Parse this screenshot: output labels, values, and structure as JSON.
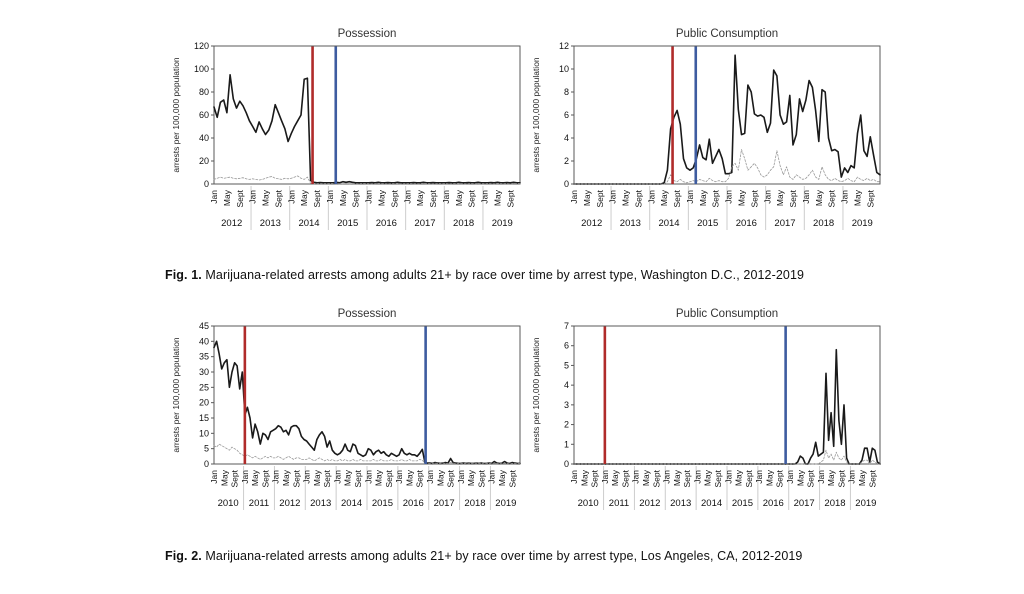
{
  "page": {
    "background": "#ffffff"
  },
  "figures": [
    {
      "caption_prefix": "Fig. 1.",
      "caption_text": " Marijuana-related arrests among adults 21+ by race over time by arrest type, Washington D.C., 2012-2019"
    },
    {
      "caption_prefix": "Fig. 2.",
      "caption_text": " Marijuana-related arrests among adults 21+ by race over time by arrest type, Los Angeles, CA, 2012-2019"
    }
  ],
  "colors": {
    "solid_series": "#1a1a1a",
    "dotted_series": "#999999",
    "red_event_line": "#b02b2a",
    "blue_event_line": "#3e5ca0",
    "plot_border": "#595959",
    "year_separator": "#cccccc",
    "tick_text": "#111111"
  },
  "chart_data": [
    {
      "type": "line",
      "title": "Possession",
      "xlabel": "",
      "ylabel": "arrests per 100,000 population",
      "ylim": [
        0,
        120
      ],
      "yticks": [
        0,
        20,
        40,
        60,
        80,
        100,
        120
      ],
      "years": [
        2012,
        2013,
        2014,
        2015,
        2016,
        2017,
        2018,
        2019
      ],
      "month_ticks": [
        "Jan",
        "May",
        "Sept"
      ],
      "month_positions": [
        0,
        4,
        8
      ],
      "grid": false,
      "legend": "none",
      "series": [
        {
          "name": "solid-black-line",
          "style": "solid",
          "color": "#1a1a1a",
          "values": [
            67,
            58,
            71,
            73,
            62,
            95,
            74,
            66,
            72,
            68,
            62,
            55,
            50,
            45,
            54,
            48,
            43,
            47,
            55,
            69,
            62,
            55,
            48,
            37,
            44,
            50,
            55,
            60,
            91,
            92,
            3,
            1.5,
            1,
            1.2,
            1,
            1,
            1,
            1,
            1.5,
            1,
            2,
            1.5,
            2,
            1.5,
            1,
            1,
            1,
            1,
            1,
            1.2,
            1,
            1.5,
            1,
            1,
            1.2,
            1,
            1,
            1.5,
            1,
            1,
            1,
            1,
            1.2,
            1,
            1,
            1.5,
            1,
            1,
            1.2,
            1,
            1,
            1,
            1,
            1.2,
            1,
            1,
            1.5,
            1,
            1,
            1.2,
            1,
            1,
            1.5,
            1,
            1,
            1,
            1.2,
            1,
            1.5,
            1,
            1,
            1.2,
            1,
            1.5,
            1,
            1
          ]
        },
        {
          "name": "dotted-gray-line",
          "style": "dotted",
          "color": "#999999",
          "values": [
            4,
            5,
            6,
            5,
            5.5,
            6,
            5,
            4.5,
            5,
            5.5,
            4.5,
            4,
            4.5,
            4,
            3.5,
            4,
            5,
            6,
            6.5,
            5,
            4.5,
            4,
            5,
            4.5,
            5,
            6,
            7,
            5,
            4,
            6,
            0.5,
            0.3,
            0.3,
            0.3,
            0.3,
            0.3,
            0.3,
            0.4,
            0.3,
            0.2,
            0.3,
            0.4,
            0.3,
            0.3,
            0.2,
            0.3,
            0.4,
            0.3,
            0.3,
            0.2,
            0.3,
            0.4,
            0.3,
            0.3,
            0.2,
            0.3,
            0.4,
            0.3,
            0.2,
            0.3,
            0.3,
            0.4,
            0.3,
            0.2,
            0.3,
            0.4,
            0.3,
            0.3,
            0.2,
            0.3,
            0.4,
            0.3,
            0.3,
            0.2,
            0.3,
            0.4,
            0.3,
            0.3,
            0.2,
            0.3,
            0.4,
            0.3,
            0.2,
            0.3,
            0.3,
            0.4,
            0.3,
            0.2,
            0.3,
            0.4,
            0.3,
            0.3,
            0.2,
            0.3,
            0.4,
            0.3
          ]
        }
      ],
      "vlines": [
        {
          "name": "red-event-line",
          "color": "#b02b2a",
          "month_index": 30.6
        },
        {
          "name": "blue-event-line",
          "color": "#3e5ca0",
          "month_index": 37.8
        }
      ]
    },
    {
      "type": "line",
      "title": "Public Consumption",
      "xlabel": "",
      "ylabel": "arrests per 100,000 population",
      "ylim": [
        0,
        12
      ],
      "yticks": [
        0,
        2,
        4,
        6,
        8,
        10,
        12
      ],
      "years": [
        2012,
        2013,
        2014,
        2015,
        2016,
        2017,
        2018,
        2019
      ],
      "month_ticks": [
        "Jan",
        "May",
        "Sept"
      ],
      "month_positions": [
        0,
        4,
        8
      ],
      "grid": false,
      "legend": "none",
      "series": [
        {
          "name": "solid-black-line",
          "style": "solid",
          "color": "#1a1a1a",
          "values": [
            0,
            0,
            0,
            0,
            0,
            0,
            0,
            0,
            0,
            0,
            0,
            0,
            0,
            0,
            0,
            0,
            0,
            0,
            0,
            0,
            0,
            0,
            0,
            0,
            0,
            0,
            0,
            0,
            0.1,
            1.2,
            4.8,
            5.8,
            6.4,
            5.2,
            2.2,
            1.4,
            1.2,
            1.4,
            2.2,
            3.4,
            2.3,
            2.1,
            3.9,
            1.8,
            2.4,
            3.0,
            2.2,
            0.9,
            0.9,
            1.0,
            11.2,
            6.5,
            4.3,
            4.4,
            8.6,
            8.0,
            6.1,
            5.9,
            6.0,
            5.8,
            4.5,
            5.3,
            9.9,
            9.4,
            6.0,
            5.2,
            5.4,
            7.7,
            3.4,
            4.3,
            7.4,
            6.3,
            7.3,
            9.0,
            8.4,
            6.4,
            3.7,
            8.2,
            8.0,
            4.0,
            2.9,
            3.0,
            2.8,
            0.6,
            1.4,
            1.0,
            1.6,
            1.4,
            4.4,
            6.0,
            2.9,
            2.4,
            4.1,
            2.5,
            1.0,
            0.8
          ]
        },
        {
          "name": "dotted-gray-line",
          "style": "dotted",
          "color": "#999999",
          "values": [
            0,
            0,
            0,
            0,
            0,
            0,
            0,
            0,
            0,
            0,
            0,
            0,
            0,
            0,
            0,
            0,
            0,
            0,
            0,
            0,
            0,
            0,
            0,
            0,
            0,
            0,
            0,
            0,
            0,
            0.2,
            0.8,
            0.3,
            0.2,
            0.4,
            0.2,
            0.1,
            0.2,
            0.3,
            0.2,
            0.4,
            0.3,
            0.2,
            0.5,
            0.3,
            0.2,
            0.3,
            0.2,
            0.2,
            0.5,
            1.5,
            1.8,
            1.2,
            3.0,
            2.2,
            1.2,
            1.5,
            1.8,
            1.4,
            0.8,
            0.6,
            0.8,
            1.2,
            1.5,
            2.9,
            1.6,
            0.8,
            1.5,
            0.6,
            0.4,
            0.8,
            0.6,
            0.4,
            0.5,
            0.8,
            1.2,
            0.6,
            0.4,
            1.5,
            0.8,
            0.4,
            0.3,
            0.5,
            0.3,
            0.2,
            0.3,
            0.5,
            0.3,
            0.2,
            0.6,
            0.4,
            0.3,
            0.5,
            0.3,
            0.4,
            0.2,
            0.2
          ]
        }
      ],
      "vlines": [
        {
          "name": "red-event-line",
          "color": "#b02b2a",
          "month_index": 30.6
        },
        {
          "name": "blue-event-line",
          "color": "#3e5ca0",
          "month_index": 37.8
        }
      ]
    },
    {
      "type": "line",
      "title": "Possession",
      "xlabel": "",
      "ylabel": "arrests per 100,000 population",
      "ylim": [
        0,
        45
      ],
      "yticks": [
        0,
        5,
        10,
        15,
        20,
        25,
        30,
        35,
        40,
        45
      ],
      "years": [
        2010,
        2011,
        2012,
        2013,
        2014,
        2015,
        2016,
        2017,
        2018,
        2019
      ],
      "month_ticks": [
        "Jan",
        "May",
        "Sept"
      ],
      "month_positions": [
        0,
        4,
        8
      ],
      "grid": false,
      "legend": "none",
      "series": [
        {
          "name": "solid-black-line",
          "style": "solid",
          "color": "#1a1a1a",
          "values": [
            38,
            40,
            36,
            31,
            33,
            34,
            25,
            30,
            33,
            32,
            24.5,
            30,
            16,
            18.5,
            15,
            8.5,
            13,
            10.5,
            6.5,
            10,
            9.5,
            8,
            10.5,
            11,
            11.5,
            12.5,
            12,
            10.5,
            11,
            9.5,
            12,
            12.5,
            12.5,
            11.5,
            9,
            8,
            7.5,
            6.5,
            5.5,
            4.5,
            8,
            9.5,
            10.5,
            9,
            5.5,
            7.5,
            4.5,
            3.5,
            3,
            3.5,
            4.5,
            6.5,
            4.5,
            4,
            6.5,
            6,
            3.5,
            3,
            2.5,
            3,
            5,
            4.5,
            3,
            4,
            4.5,
            3.5,
            4,
            3,
            2.5,
            3.5,
            3,
            2.5,
            3,
            5,
            3.5,
            3,
            3.5,
            3,
            3,
            2.5,
            3.5,
            4.8,
            0.5,
            0.3,
            0.3,
            0.2,
            0.5,
            0.3,
            0.2,
            0.3,
            0.5,
            0.3,
            1.8,
            0.5,
            0.3,
            0.2,
            0.2,
            0.3,
            0.2,
            0.3,
            0.2,
            0.2,
            0.3,
            0.2,
            0.3,
            0.2,
            0.2,
            0.3,
            0.2,
            0.8,
            0.3,
            0.2,
            0.3,
            0.8,
            0.3,
            0.2,
            0.5,
            0.3,
            0.2,
            0.2
          ]
        },
        {
          "name": "dotted-gray-line",
          "style": "dotted",
          "color": "#999999",
          "values": [
            6,
            5.5,
            6.5,
            6,
            5.5,
            5,
            4.5,
            5.5,
            5,
            4.5,
            3.5,
            3,
            2.5,
            3,
            2.5,
            2,
            2.5,
            2,
            1.5,
            2,
            2.5,
            2,
            2.5,
            2,
            2,
            2.5,
            2,
            1.5,
            2,
            2.5,
            2,
            1.5,
            2,
            2,
            1.5,
            1.5,
            1.5,
            2,
            1.5,
            1,
            1.5,
            2,
            1.5,
            1,
            1.5,
            1,
            1.5,
            1,
            1,
            1.5,
            1,
            1.5,
            1,
            1,
            1.5,
            1,
            1,
            1.5,
            1,
            1,
            1,
            1,
            1.5,
            1,
            1,
            1.5,
            1,
            1,
            1,
            1.5,
            1,
            1,
            1,
            1.5,
            1,
            1,
            1.5,
            1,
            1,
            1,
            1.5,
            1.2,
            0.3,
            0.2,
            0.2,
            0.2,
            0.3,
            0.2,
            0.2,
            0.3,
            0.2,
            0.2,
            0.5,
            0.3,
            0.2,
            0.2,
            0.2,
            0.2,
            0.2,
            0.3,
            0.2,
            0.2,
            0.3,
            0.2,
            0.2,
            0.3,
            0.2,
            0.2,
            0.2,
            0.3,
            0.2,
            0.2,
            0.3,
            0.2,
            0.2,
            0.3,
            0.2,
            0.2,
            0.2,
            0.2
          ]
        }
      ],
      "vlines": [
        {
          "name": "red-event-line",
          "color": "#b02b2a",
          "month_index": 12
        },
        {
          "name": "blue-event-line",
          "color": "#3e5ca0",
          "month_index": 82.3
        }
      ]
    },
    {
      "type": "line",
      "title": "Public Consumption",
      "xlabel": "",
      "ylabel": "arrests per 100,000 population",
      "ylim": [
        0,
        7
      ],
      "yticks": [
        0,
        1,
        2,
        3,
        4,
        5,
        6,
        7
      ],
      "years": [
        2010,
        2011,
        2012,
        2013,
        2014,
        2015,
        2016,
        2017,
        2018,
        2019
      ],
      "month_ticks": [
        "Jan",
        "May",
        "Sept"
      ],
      "month_positions": [
        0,
        4,
        8
      ],
      "grid": false,
      "legend": "none",
      "series": [
        {
          "name": "solid-black-line",
          "style": "solid",
          "color": "#1a1a1a",
          "values": [
            0,
            0,
            0,
            0,
            0,
            0,
            0,
            0,
            0,
            0,
            0,
            0,
            0,
            0,
            0,
            0,
            0,
            0,
            0,
            0,
            0,
            0,
            0,
            0,
            0,
            0,
            0,
            0,
            0,
            0,
            0,
            0,
            0,
            0,
            0,
            0,
            0,
            0,
            0,
            0,
            0,
            0,
            0,
            0,
            0,
            0,
            0,
            0,
            0,
            0,
            0,
            0,
            0,
            0,
            0,
            0,
            0,
            0,
            0,
            0,
            0,
            0,
            0,
            0,
            0,
            0,
            0,
            0,
            0,
            0,
            0,
            0,
            0,
            0,
            0,
            0,
            0,
            0,
            0,
            0,
            0,
            0,
            0,
            0,
            0,
            0,
            0,
            0.1,
            0.4,
            0.3,
            0,
            0,
            0.3,
            0.5,
            1.1,
            0.4,
            0.5,
            0.6,
            4.6,
            1.2,
            2.6,
            0.9,
            5.8,
            2.2,
            1.0,
            3.0,
            0.3,
            0,
            0,
            0,
            0,
            0,
            0.2,
            0.8,
            0.8,
            0.1,
            0.8,
            0.7,
            0.1,
            0
          ]
        },
        {
          "name": "dotted-gray-line",
          "style": "dotted",
          "color": "#999999",
          "values": [
            0,
            0,
            0,
            0,
            0,
            0,
            0,
            0,
            0,
            0,
            0,
            0,
            0,
            0,
            0,
            0,
            0,
            0,
            0,
            0,
            0,
            0,
            0,
            0,
            0,
            0,
            0,
            0,
            0,
            0,
            0,
            0,
            0,
            0,
            0,
            0,
            0,
            0,
            0,
            0,
            0,
            0,
            0,
            0,
            0,
            0,
            0,
            0,
            0,
            0,
            0,
            0,
            0,
            0,
            0,
            0,
            0,
            0,
            0,
            0,
            0,
            0,
            0,
            0,
            0,
            0,
            0,
            0,
            0,
            0,
            0,
            0,
            0,
            0,
            0,
            0,
            0,
            0,
            0,
            0,
            0,
            0,
            0,
            0,
            0,
            0,
            0,
            0,
            0,
            0,
            0,
            0,
            0,
            0,
            0,
            0,
            0.1,
            0.2,
            0.7,
            0.3,
            0.5,
            0.2,
            0.6,
            0.3,
            0.2,
            0.4,
            0.1,
            0,
            0,
            0,
            0,
            0,
            0.1,
            0.2,
            0.2,
            0,
            0.2,
            0.1,
            0,
            0
          ]
        }
      ],
      "vlines": [
        {
          "name": "red-event-line",
          "color": "#b02b2a",
          "month_index": 12
        },
        {
          "name": "blue-event-line",
          "color": "#3e5ca0",
          "month_index": 82.3
        }
      ]
    }
  ]
}
